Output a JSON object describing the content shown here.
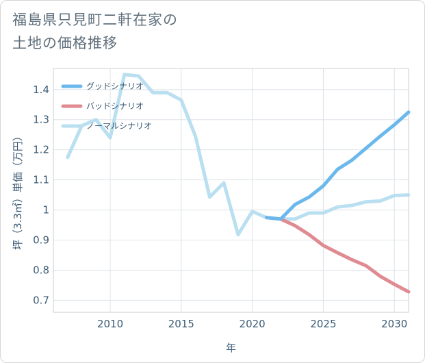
{
  "title_line1": "福島県只見町二軒在家の",
  "title_line2": "土地の価格推移",
  "chart_data": {
    "type": "line",
    "xlabel": "年",
    "ylabel": "坪（3.3㎡）単価（万円）",
    "xlim": [
      2006,
      2031
    ],
    "ylim": [
      0.66,
      1.47
    ],
    "x_ticks": [
      2010,
      2015,
      2020,
      2025,
      2030
    ],
    "y_ticks": [
      0.7,
      0.8,
      0.9,
      1,
      1.1,
      1.2,
      1.3,
      1.4
    ],
    "grid": true,
    "legend_position": "top-left",
    "series": [
      {
        "name": "グッドシナリオ",
        "color": "#6bb8ec",
        "x": [
          2021,
          2022,
          2023,
          2024,
          2025,
          2026,
          2027,
          2028,
          2029,
          2030,
          2031
        ],
        "values": [
          0.975,
          0.97,
          1.018,
          1.043,
          1.08,
          1.135,
          1.165,
          1.205,
          1.245,
          1.283,
          1.325
        ]
      },
      {
        "name": "バッドシナリオ",
        "color": "#e08a92",
        "x": [
          2021,
          2022,
          2023,
          2024,
          2025,
          2026,
          2027,
          2028,
          2029,
          2030,
          2031
        ],
        "values": [
          0.975,
          0.97,
          0.948,
          0.918,
          0.882,
          0.858,
          0.835,
          0.815,
          0.78,
          0.753,
          0.728
        ]
      },
      {
        "name": "ノーマルシナリオ",
        "color": "#b9dff0",
        "x": [
          2007,
          2008,
          2009,
          2010,
          2011,
          2012,
          2013,
          2014,
          2015,
          2016,
          2017,
          2018,
          2019,
          2020,
          2021,
          2022,
          2023,
          2024,
          2025,
          2026,
          2027,
          2028,
          2029,
          2030,
          2031
        ],
        "values": [
          1.175,
          1.28,
          1.3,
          1.24,
          1.45,
          1.445,
          1.39,
          1.39,
          1.365,
          1.245,
          1.043,
          1.09,
          0.918,
          0.995,
          0.975,
          0.97,
          0.97,
          0.99,
          0.99,
          1.01,
          1.015,
          1.027,
          1.03,
          1.048,
          1.05
        ]
      }
    ]
  }
}
